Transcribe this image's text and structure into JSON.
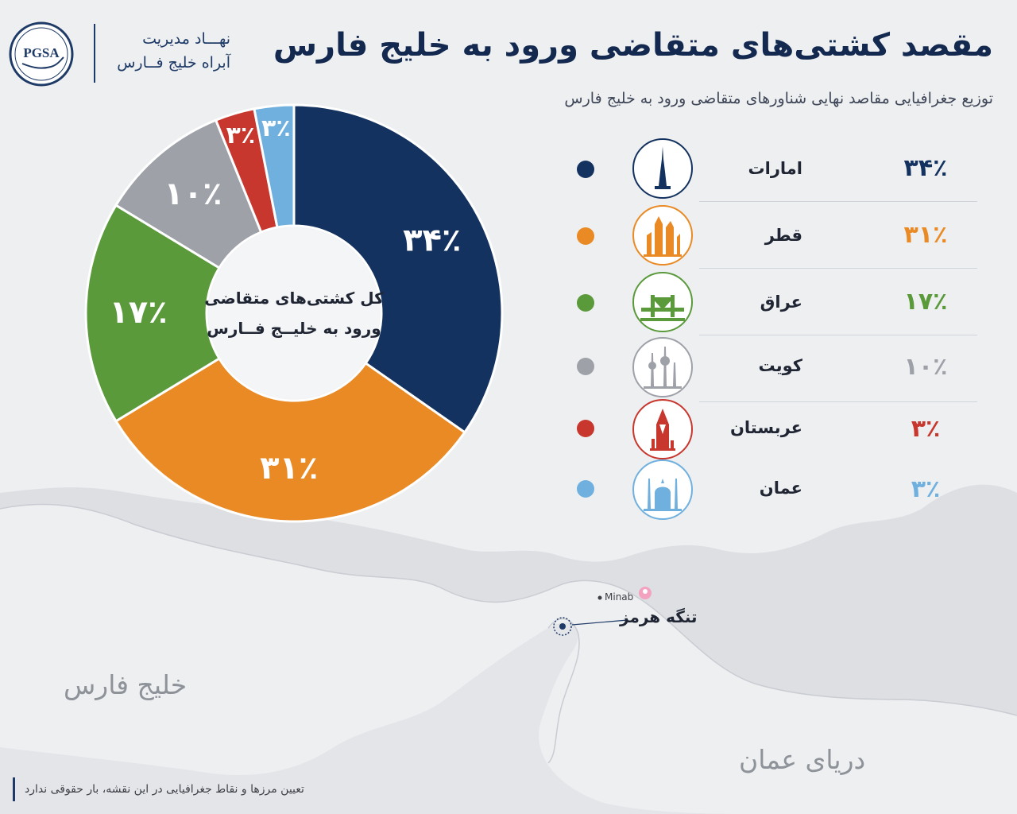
{
  "header": {
    "logo_abbr": "PGSA",
    "org_line1": "نهـــاد مدیریت",
    "org_line2": "آبراه خلیج فــارس",
    "title": "مقصد کشتی‌های متقاضی ورود به خلیج فارس",
    "subtitle": "توزیع جغرافیایی مقاصد نهایی شناورهای متقاضی ورود به خلیج فارس"
  },
  "chart_data": {
    "type": "pie",
    "donut": true,
    "center_label_line1": "کل کشتی‌های متقاضی",
    "center_label_line2": "ورود به خلیــج فــارس",
    "series": [
      {
        "name": "امارات",
        "value": 34,
        "label": "۳۴٪",
        "color": "#13325f",
        "icon": "tower-icon"
      },
      {
        "name": "قطر",
        "value": 31,
        "label": "۳۱٪",
        "color": "#e98a24",
        "icon": "skyline-icon"
      },
      {
        "name": "عراق",
        "value": 17,
        "label": "۱۷٪",
        "color": "#5a9a3b",
        "icon": "bridge-icon"
      },
      {
        "name": "کویت",
        "value": 10,
        "label": "۱۰٪",
        "color": "#9ea1a8",
        "icon": "kuwait-towers-icon"
      },
      {
        "name": "عربستان",
        "value": 3,
        "label": "۳٪",
        "color": "#c8372e",
        "icon": "kingdom-tower-icon"
      },
      {
        "name": "عمان",
        "value": 3,
        "label": "۳٪",
        "color": "#6fb0df",
        "icon": "mosque-icon"
      }
    ]
  },
  "map": {
    "persian_gulf": "خلیج فارس",
    "sea_of_oman": "دریای عمان",
    "strait": "تنگه هرمز",
    "city": "Minab"
  },
  "footer": {
    "disclaimer": "تعیین مرزها و نقاط جغرافیایی در این نقشه، بار حقوقی ندارد"
  }
}
